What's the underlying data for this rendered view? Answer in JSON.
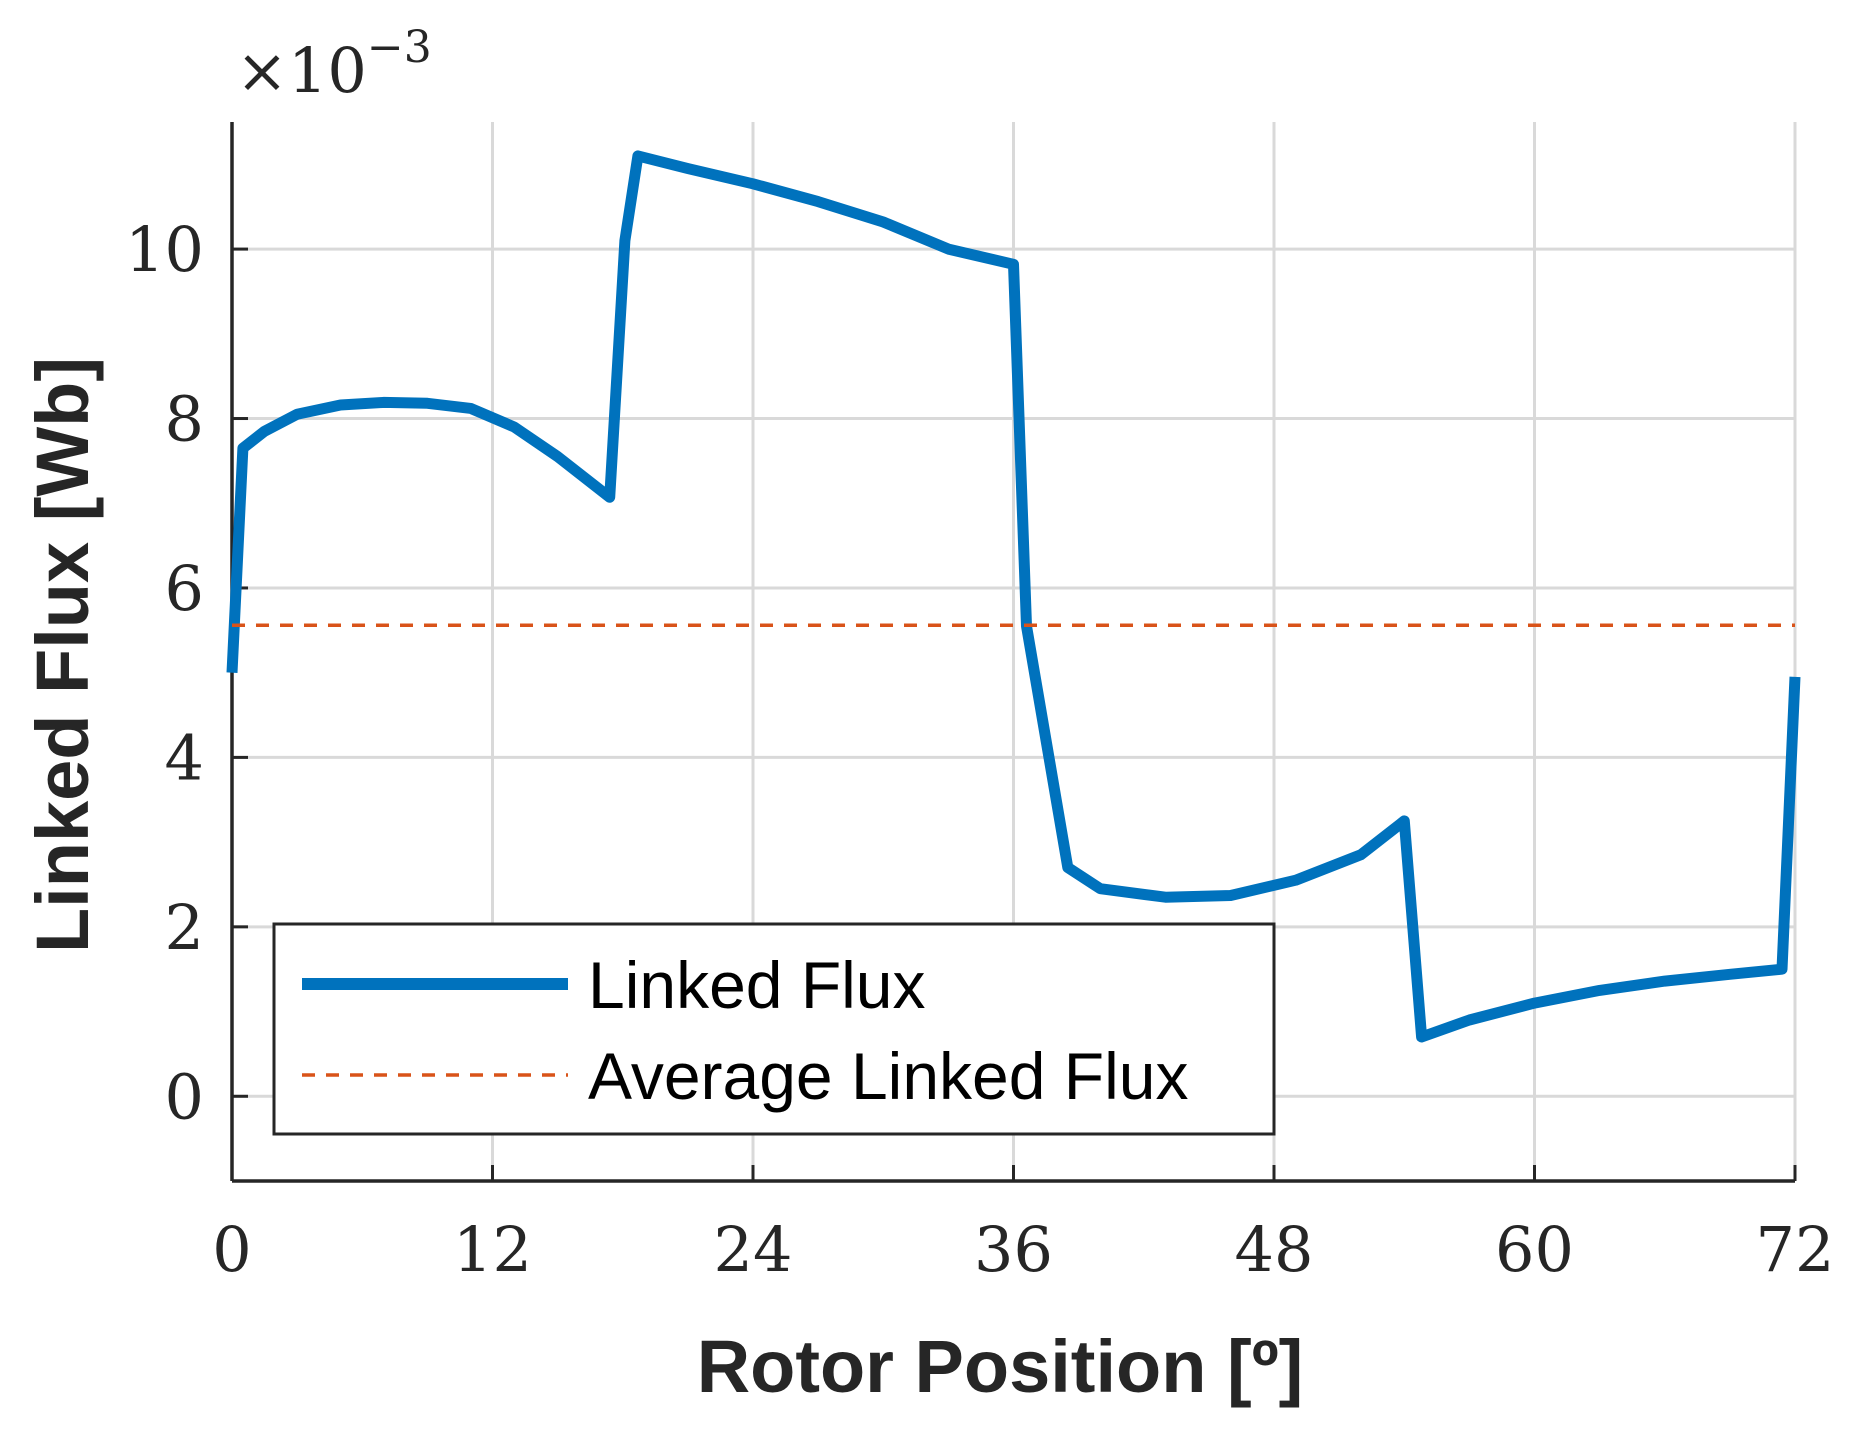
{
  "chart_data": {
    "type": "line",
    "title": "",
    "xlabel": "Rotor Position [º]",
    "ylabel": "Linked Flux [Wb]",
    "xlim": [
      0,
      72
    ],
    "ylim": [
      -1,
      11.5
    ],
    "y_scale_factor": "×10",
    "y_scale_exponent": "−3",
    "xticks": [
      "0",
      "12",
      "24",
      "36",
      "48",
      "60",
      "72"
    ],
    "yticks": [
      "0",
      "2",
      "4",
      "6",
      "8",
      "10"
    ],
    "grid": true,
    "legend_position": "bottom-left",
    "series": [
      {
        "name": "Linked Flux",
        "color": "#0072BD",
        "style": "solid",
        "x": [
          0,
          0.5,
          1.5,
          3,
          5,
          7,
          9,
          11,
          13,
          15,
          17.4,
          18.1,
          18.7,
          21,
          24,
          27,
          30,
          33,
          36,
          36.6,
          38.5,
          40,
          43,
          46,
          49,
          52,
          54,
          54.8,
          57,
          60,
          63,
          66,
          69,
          71.4,
          72
        ],
        "y": [
          5.0,
          7.65,
          7.85,
          8.05,
          8.16,
          8.19,
          8.18,
          8.12,
          7.9,
          7.55,
          7.07,
          10.1,
          11.1,
          10.95,
          10.77,
          10.56,
          10.32,
          10.0,
          9.82,
          5.55,
          2.7,
          2.45,
          2.35,
          2.37,
          2.55,
          2.85,
          3.25,
          0.7,
          0.9,
          1.1,
          1.25,
          1.36,
          1.44,
          1.5,
          4.95
        ]
      },
      {
        "name": "Average Linked Flux",
        "color": "#D95319",
        "style": "dashed",
        "x": [
          0,
          72
        ],
        "y": [
          5.56,
          5.56
        ]
      }
    ]
  }
}
